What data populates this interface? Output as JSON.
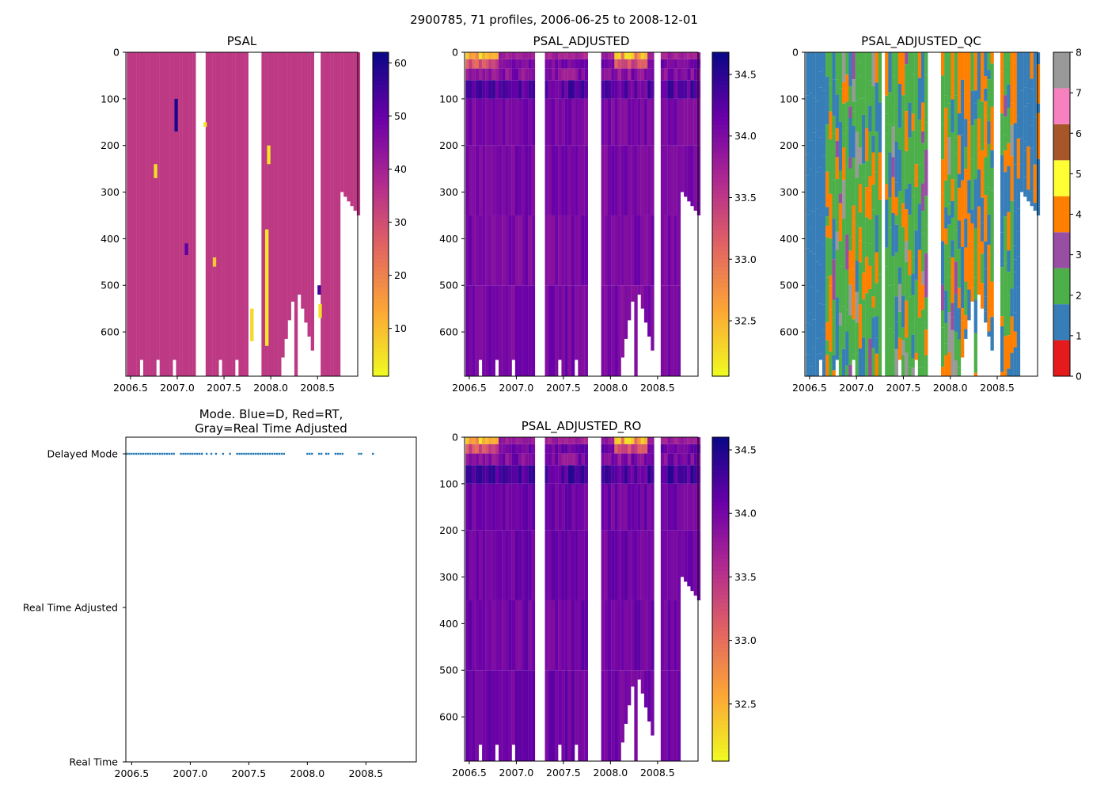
{
  "figure": {
    "title": "2900785, 71 profiles, 2006-06-25 to 2008-12-01"
  },
  "colors": {
    "plasma": [
      "#0d0887",
      "#6a00a8",
      "#b12a90",
      "#e16462",
      "#fca636",
      "#f0f921"
    ],
    "qc": [
      "#e41a1c",
      "#377eb8",
      "#4daf4a",
      "#984ea3",
      "#ff7f00",
      "#ffff33",
      "#a65628",
      "#f781bf",
      "#999999"
    ],
    "mode_dot": "#1f77b4"
  },
  "chart_data": [
    {
      "id": "psal",
      "type": "heatmap",
      "title": "PSAL",
      "xlim": [
        2006.45,
        2008.93
      ],
      "ylim": [
        695,
        0
      ],
      "x_ticks": [
        "2006.5",
        "2007.0",
        "2007.5",
        "2008.0",
        "2008.5"
      ],
      "y_ticks": [
        "0",
        "100",
        "200",
        "300",
        "400",
        "500",
        "600"
      ],
      "colorbar": {
        "min": 1,
        "max": 62,
        "ticks": [
          "10",
          "20",
          "30",
          "40",
          "50",
          "60"
        ],
        "tick_values": [
          10,
          20,
          30,
          40,
          50,
          60
        ],
        "colormap": "plasma_r"
      },
      "typical_value": 34.5,
      "anomalies": [
        {
          "date": 2006.75,
          "depth_from": 240,
          "depth_to": 270,
          "value": 5
        },
        {
          "date": 2006.97,
          "depth_from": 100,
          "depth_to": 170,
          "value": 60
        },
        {
          "date": 2007.08,
          "depth_from": 410,
          "depth_to": 435,
          "value": 52
        },
        {
          "date": 2007.28,
          "depth_from": 150,
          "depth_to": 160,
          "value": 4
        },
        {
          "date": 2007.38,
          "depth_from": 440,
          "depth_to": 460,
          "value": 8
        },
        {
          "date": 2007.78,
          "depth_from": 550,
          "depth_to": 620,
          "value": 6
        },
        {
          "date": 2007.94,
          "depth_from": 380,
          "depth_to": 630,
          "value": 3
        },
        {
          "date": 2007.96,
          "depth_from": 200,
          "depth_to": 240,
          "value": 4
        },
        {
          "date": 2008.5,
          "depth_from": 500,
          "depth_to": 520,
          "value": 55
        },
        {
          "date": 2008.51,
          "depth_from": 540,
          "depth_to": 570,
          "value": 5
        }
      ]
    },
    {
      "id": "psal_adjusted",
      "type": "heatmap",
      "title": "PSAL_ADJUSTED",
      "xlim": [
        2006.45,
        2008.93
      ],
      "ylim": [
        695,
        0
      ],
      "x_ticks": [
        "2006.5",
        "2007.0",
        "2007.5",
        "2008.0",
        "2008.5"
      ],
      "y_ticks": [
        "0",
        "100",
        "200",
        "300",
        "400",
        "500",
        "600"
      ],
      "colorbar": {
        "min": 32.05,
        "max": 34.68,
        "ticks": [
          "32.5",
          "33.0",
          "33.5",
          "34.0",
          "34.5"
        ],
        "tick_values": [
          32.5,
          33.0,
          33.5,
          34.0,
          34.5
        ],
        "colormap": "plasma_r"
      },
      "surface_value": 32.1,
      "deep_value": 34.05
    },
    {
      "id": "psal_adjusted_qc",
      "type": "heatmap",
      "title": "PSAL_ADJUSTED_QC",
      "xlim": [
        2006.45,
        2008.93
      ],
      "ylim": [
        695,
        0
      ],
      "x_ticks": [
        "2006.5",
        "2007.0",
        "2007.5",
        "2008.0",
        "2008.5"
      ],
      "y_ticks": [
        "0",
        "100",
        "200",
        "300",
        "400",
        "500",
        "600"
      ],
      "colorbar": {
        "min": 0,
        "max": 8,
        "ticks": [
          "0",
          "1",
          "2",
          "3",
          "4",
          "5",
          "6",
          "7",
          "8"
        ],
        "tick_values": [
          0,
          1,
          2,
          3,
          4,
          5,
          6,
          7,
          8
        ],
        "colormap": "qc_categorical"
      },
      "qc_flag_values": [
        1,
        2,
        4,
        8,
        3
      ]
    },
    {
      "id": "mode",
      "type": "scatter",
      "title": "Mode. Blue=D, Red=RT,\nGray=Real Time Adjusted",
      "title_lines": [
        "Mode. Blue=D, Red=RT,",
        "Gray=Real Time Adjusted"
      ],
      "xlim": [
        2006.45,
        2008.93
      ],
      "x_ticks": [
        "2006.5",
        "2007.0",
        "2007.5",
        "2008.0",
        "2008.5"
      ],
      "y_categories": [
        "Delayed Mode",
        "Real Time Adjusted",
        "Real Time"
      ],
      "points_x": [
        2006.46,
        2006.48,
        2006.5,
        2006.52,
        2006.54,
        2006.56,
        2006.58,
        2006.6,
        2006.62,
        2006.64,
        2006.66,
        2006.68,
        2006.7,
        2006.72,
        2006.74,
        2006.76,
        2006.78,
        2006.8,
        2006.82,
        2006.84,
        2006.86,
        2006.92,
        2006.94,
        2006.96,
        2006.98,
        2007.0,
        2007.02,
        2007.04,
        2007.06,
        2007.08,
        2007.1,
        2007.14,
        2007.18,
        2007.22,
        2007.28,
        2007.34,
        2007.4,
        2007.42,
        2007.44,
        2007.46,
        2007.48,
        2007.5,
        2007.52,
        2007.54,
        2007.56,
        2007.58,
        2007.6,
        2007.62,
        2007.64,
        2007.66,
        2007.68,
        2007.7,
        2007.72,
        2007.74,
        2007.76,
        2007.78,
        2007.8,
        2008.0,
        2008.02,
        2008.04,
        2008.1,
        2008.12,
        2008.16,
        2008.18,
        2008.24,
        2008.26,
        2008.28,
        2008.3,
        2008.44,
        2008.46,
        2008.56
      ],
      "points_mode": "Delayed Mode"
    },
    {
      "id": "psal_adjusted_ro",
      "type": "heatmap",
      "title": "PSAL_ADJUSTED_RO",
      "xlim": [
        2006.45,
        2008.93
      ],
      "ylim": [
        695,
        0
      ],
      "x_ticks": [
        "2006.5",
        "2007.0",
        "2007.5",
        "2008.0",
        "2008.5"
      ],
      "y_ticks": [
        "0",
        "100",
        "200",
        "300",
        "400",
        "500",
        "600"
      ],
      "colorbar": {
        "min": 32.05,
        "max": 34.6,
        "ticks": [
          "32.5",
          "33.0",
          "33.5",
          "34.0",
          "34.5"
        ],
        "tick_values": [
          32.5,
          33.0,
          33.5,
          34.0,
          34.5
        ],
        "colormap": "plasma_r"
      },
      "surface_value": 32.1,
      "deep_value": 34.05
    }
  ]
}
